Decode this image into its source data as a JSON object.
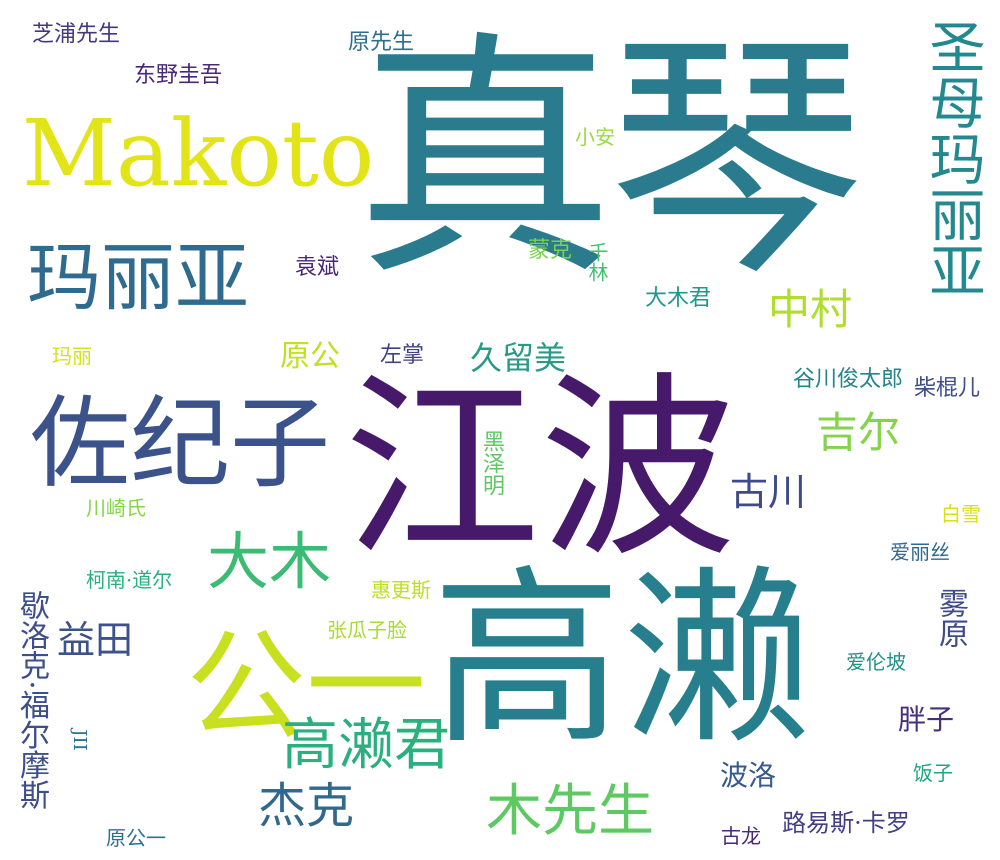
{
  "words": [
    {
      "text": "真琴",
      "color": "#2a7b8e"
    },
    {
      "text": "江波",
      "color": "#46196b"
    },
    {
      "text": "高濑",
      "color": "#277f8e"
    },
    {
      "text": "Makoto",
      "color": "#e2e418"
    },
    {
      "text": "公一",
      "color": "#c8e020"
    },
    {
      "text": "佐纪子",
      "color": "#3b528b"
    },
    {
      "text": "玛丽亚",
      "color": "#2f6b8e"
    },
    {
      "text": "圣母玛丽亚",
      "color": "#23898e"
    },
    {
      "text": "大木",
      "color": "#3cbb75"
    },
    {
      "text": "高濑君",
      "color": "#2ab07f"
    },
    {
      "text": "木先生",
      "color": "#5ec962"
    },
    {
      "text": "杰克",
      "color": "#31688e"
    },
    {
      "text": "中村",
      "color": "#b0dd2f"
    },
    {
      "text": "吉尔",
      "color": "#84d44b"
    },
    {
      "text": "古川",
      "color": "#3e4a89"
    },
    {
      "text": "益田",
      "color": "#3b528b"
    },
    {
      "text": "久留美",
      "color": "#2a9a86"
    },
    {
      "text": "原公",
      "color": "#c2df23"
    },
    {
      "text": "雾原",
      "color": "#3e4c8a"
    },
    {
      "text": "歇洛克·福尔摩斯",
      "color": "#3d4e8a"
    },
    {
      "text": "胖子",
      "color": "#46307e"
    },
    {
      "text": "波洛",
      "color": "#38598c"
    },
    {
      "text": "路易斯·卡罗",
      "color": "#433e85"
    },
    {
      "text": "柴棍儿",
      "color": "#3e4c8a"
    },
    {
      "text": "谷川俊太郎",
      "color": "#25858e"
    },
    {
      "text": "黑泽明",
      "color": "#5ec962"
    },
    {
      "text": "袁斌",
      "color": "#482677"
    },
    {
      "text": "蒙克",
      "color": "#7ad151"
    },
    {
      "text": "千林",
      "color": "#44bf70"
    },
    {
      "text": "大木君",
      "color": "#1f978b"
    },
    {
      "text": "小安",
      "color": "#9bd93c"
    },
    {
      "text": "原先生",
      "color": "#2e6e8e"
    },
    {
      "text": "东野圭吾",
      "color": "#482878"
    },
    {
      "text": "芝浦先生",
      "color": "#453781"
    },
    {
      "text": "左掌",
      "color": "#40437f"
    },
    {
      "text": "玛丽",
      "color": "#d5e21a"
    },
    {
      "text": "川崎氏",
      "color": "#86d549"
    },
    {
      "text": "柯南·道尔",
      "color": "#29af7f"
    },
    {
      "text": "惠更斯",
      "color": "#bddf26"
    },
    {
      "text": "张瓜子脸",
      "color": "#a8db34"
    },
    {
      "text": "爱丽丝",
      "color": "#31688e"
    },
    {
      "text": "白雪",
      "color": "#d8e219"
    },
    {
      "text": "爱伦坡",
      "color": "#21918c"
    },
    {
      "text": "饭子",
      "color": "#20a486"
    },
    {
      "text": "古龙",
      "color": "#482878"
    },
    {
      "text": "原公一",
      "color": "#2d708e"
    },
    {
      "text": "JII",
      "color": "#2c728e"
    }
  ]
}
